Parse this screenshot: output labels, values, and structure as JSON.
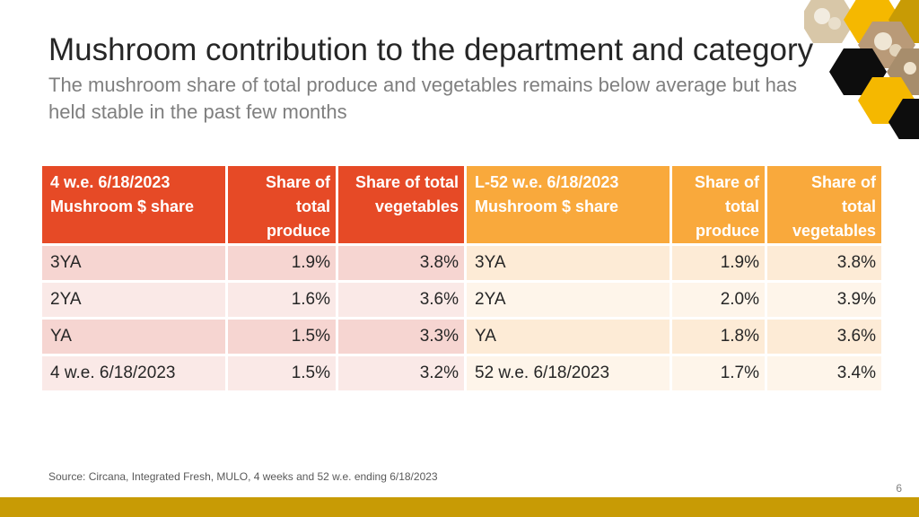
{
  "title": "Mushroom contribution to the department and category",
  "subtitle": "The mushroom share of total produce and vegetables remains below average but has held stable in the past few months",
  "decoration": {
    "icon": "hexagon-mushroom-photo-collage-icon"
  },
  "colors": {
    "left_header": "#e64a26",
    "right_header": "#f9a93c",
    "footer_bar": "#c89b05"
  },
  "left_table": {
    "headers": [
      "4 w.e. 6/18/2023 Mushroom $ share",
      "Share of total produce",
      "Share of total vegetables"
    ],
    "rows": [
      [
        "3YA",
        "1.9%",
        "3.8%"
      ],
      [
        "2YA",
        "1.6%",
        "3.6%"
      ],
      [
        "YA",
        "1.5%",
        "3.3%"
      ],
      [
        "4 w.e. 6/18/2023",
        "1.5%",
        "3.2%"
      ]
    ]
  },
  "right_table": {
    "headers": [
      "L-52 w.e. 6/18/2023 Mushroom $ share",
      "Share of total produce",
      "Share of total vegetables"
    ],
    "rows": [
      [
        "3YA",
        "1.9%",
        "3.8%"
      ],
      [
        "2YA",
        "2.0%",
        "3.9%"
      ],
      [
        "YA",
        "1.8%",
        "3.6%"
      ],
      [
        "52 w.e. 6/18/2023",
        "1.7%",
        "3.4%"
      ]
    ]
  },
  "source": "Source: Circana, Integrated Fresh, MULO, 4 weeks and 52 w.e. ending 6/18/2023",
  "page_number": "6"
}
